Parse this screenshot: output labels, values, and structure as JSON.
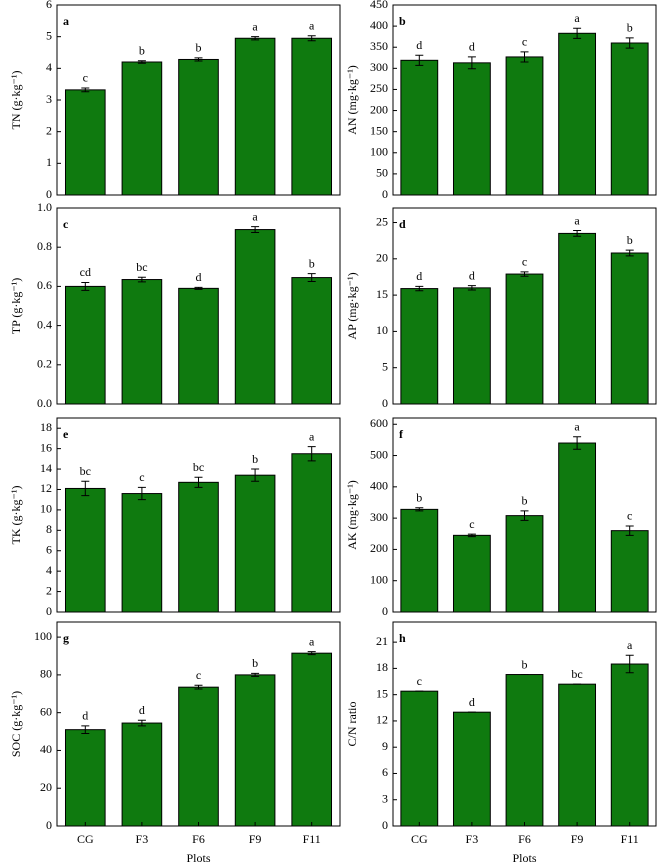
{
  "chart_data": [
    {
      "type": "bar",
      "panel": "a",
      "y_label": "TN (g·kg⁻¹)",
      "color": "#0f7a0f",
      "values": [
        3.32,
        4.2,
        4.28,
        4.95,
        4.95
      ],
      "errors": [
        0.06,
        0.04,
        0.05,
        0.05,
        0.08
      ],
      "letters": [
        "c",
        "b",
        "b",
        "a",
        "a"
      ],
      "ylim": [
        0,
        6
      ],
      "yticks": [
        0,
        1,
        2,
        3,
        4,
        5,
        6
      ]
    },
    {
      "type": "bar",
      "panel": "b",
      "y_label": "AN (mg·kg⁻¹)",
      "color": "#0f7a0f",
      "values": [
        319,
        313,
        327,
        383,
        360
      ],
      "errors": [
        12,
        14,
        12,
        12,
        12
      ],
      "letters": [
        "d",
        "d",
        "c",
        "a",
        "b"
      ],
      "ylim": [
        0,
        450
      ],
      "yticks": [
        0,
        50,
        100,
        150,
        200,
        250,
        300,
        350,
        400,
        450
      ]
    },
    {
      "type": "bar",
      "panel": "c",
      "y_label": "TP (g·kg⁻¹)",
      "color": "#0f7a0f",
      "values": [
        0.6,
        0.635,
        0.59,
        0.89,
        0.645
      ],
      "errors": [
        0.02,
        0.012,
        0.005,
        0.015,
        0.02
      ],
      "letters": [
        "cd",
        "bc",
        "d",
        "a",
        "b"
      ],
      "ylim": [
        0,
        1.0
      ],
      "yticks": [
        {
          "value": 0,
          "label": "0.0"
        },
        0.2,
        0.4,
        0.6,
        0.8,
        {
          "value": 1,
          "label": "1.0"
        }
      ]
    },
    {
      "type": "bar",
      "panel": "d",
      "y_label": "AP (mg·kg⁻¹)",
      "color": "#0f7a0f",
      "values": [
        15.9,
        16.0,
        17.9,
        23.5,
        20.8
      ],
      "errors": [
        0.3,
        0.3,
        0.3,
        0.4,
        0.4
      ],
      "letters": [
        "d",
        "d",
        "c",
        "a",
        "b"
      ],
      "ylim": [
        0,
        27
      ],
      "yticks": [
        0,
        5,
        10,
        15,
        20,
        25
      ]
    },
    {
      "type": "bar",
      "panel": "e",
      "y_label": "TK (g·kg⁻¹)",
      "color": "#0f7a0f",
      "values": [
        12.1,
        11.6,
        12.7,
        13.4,
        15.5
      ],
      "errors": [
        0.7,
        0.6,
        0.5,
        0.6,
        0.7
      ],
      "letters": [
        "bc",
        "c",
        "bc",
        "b",
        "a"
      ],
      "ylim": [
        0,
        19
      ],
      "yticks": [
        0,
        2,
        4,
        6,
        8,
        10,
        12,
        14,
        16,
        18
      ]
    },
    {
      "type": "bar",
      "panel": "f",
      "y_label": "AK (mg·kg⁻¹)",
      "color": "#0f7a0f",
      "values": [
        328,
        245,
        308,
        540,
        260
      ],
      "errors": [
        5,
        4,
        15,
        20,
        15
      ],
      "letters": [
        "b",
        "c",
        "b",
        "a",
        "c"
      ],
      "ylim": [
        0,
        620
      ],
      "yticks": [
        0,
        100,
        200,
        300,
        400,
        500,
        600
      ]
    },
    {
      "type": "bar",
      "panel": "g",
      "y_label": "SOC (g·kg⁻¹)",
      "color": "#0f7a0f",
      "x_label": "Plots",
      "categories": [
        "CG",
        "F3",
        "F6",
        "F9",
        "F11"
      ],
      "values": [
        51,
        54.5,
        73.5,
        80,
        91.5
      ],
      "errors": [
        2,
        1.5,
        1,
        0.8,
        0.8
      ],
      "letters": [
        "d",
        "d",
        "c",
        "b",
        "a"
      ],
      "ylim": [
        0,
        108
      ],
      "yticks": [
        0,
        20,
        40,
        60,
        80,
        100
      ]
    },
    {
      "type": "bar",
      "panel": "h",
      "y_label": "C/N ratio",
      "color": "#0f7a0f",
      "x_label": "Plots",
      "categories": [
        "CG",
        "F3",
        "F6",
        "F9",
        "F11"
      ],
      "values": [
        15.4,
        13.0,
        17.3,
        16.2,
        18.5
      ],
      "errors": [
        0,
        0,
        0,
        0,
        1.0
      ],
      "letters": [
        "c",
        "d",
        "b",
        "bc",
        "a"
      ],
      "ylim": [
        0,
        23.3
      ],
      "yticks": [
        0,
        3,
        6,
        9,
        12,
        15,
        18,
        21
      ]
    }
  ]
}
